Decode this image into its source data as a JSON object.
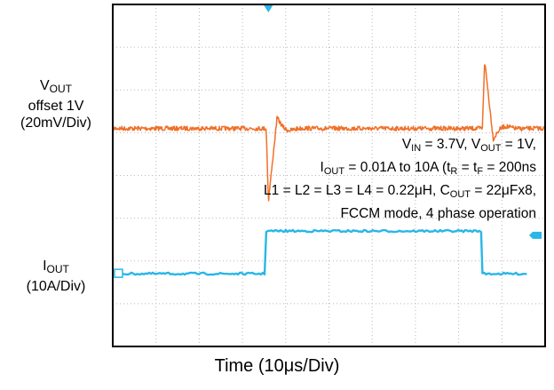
{
  "chart_data": {
    "type": "line",
    "title": "",
    "xlabel": {
      "text": "Time (10",
      "mu": "μ",
      "rest": "s/Div)"
    },
    "x_divisions": 10,
    "y_divisions": 8,
    "x_range_us": [
      0,
      100
    ],
    "grid": true,
    "trigger_time_us": 40,
    "series": [
      {
        "name": "VOUT",
        "color": "#f07028",
        "label_lines": [
          {
            "main": "V",
            "sub": "OUT"
          },
          {
            "main": "offset 1V"
          },
          {
            "main": "(20mV/Div)"
          }
        ],
        "scale_mV_per_div": 20,
        "baseline_mV": 0,
        "events": [
          {
            "time_us": 35.5,
            "kind": "load-step-up",
            "undershoot_mV": -34,
            "recovery_overshoot_mV": 5
          },
          {
            "time_us": 85.5,
            "kind": "load-step-down",
            "overshoot_mV": 32,
            "recovery_undershoot_mV": -5
          }
        ]
      },
      {
        "name": "IOUT",
        "color": "#29b6e8",
        "label_lines": [
          {
            "main": "I",
            "sub": "OUT"
          },
          {
            "main": "(10A/Div)"
          }
        ],
        "scale_A_per_div": 10,
        "levels_A": {
          "low": 0.01,
          "high": 10
        },
        "rise_time_us": 35.5,
        "fall_time_us": 85.5
      }
    ],
    "annotation_lines": [
      [
        {
          "t": "V"
        },
        {
          "s": "IN"
        },
        {
          "t": " = 3.7V, V"
        },
        {
          "s": "OUT"
        },
        {
          "t": " = 1V,"
        }
      ],
      [
        {
          "t": "I"
        },
        {
          "s": "OUT"
        },
        {
          "t": " = 0.01A to 10A (t"
        },
        {
          "s": "R"
        },
        {
          "t": " = t"
        },
        {
          "s": "F"
        },
        {
          "t": " = 200ns"
        }
      ],
      [
        {
          "t": "L1 = L2 = L3 = L4 = 0.22μH, C"
        },
        {
          "s": "OUT"
        },
        {
          "t": " = 22μFx8,"
        }
      ],
      [
        {
          "t": "FCCM mode, 4 phase operation"
        }
      ]
    ]
  }
}
